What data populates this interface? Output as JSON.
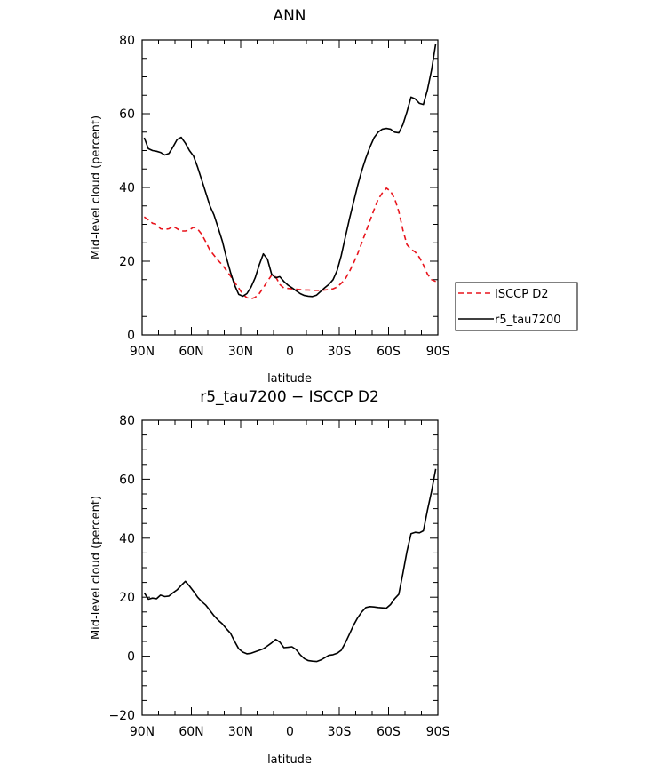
{
  "chart_data": [
    {
      "type": "line",
      "title": "ANN",
      "xlabel": "latitude",
      "ylabel": "Mid-level cloud (percent)",
      "xlim": [
        90,
        -90
      ],
      "ylim": [
        0,
        80
      ],
      "x_ticks": [
        90,
        60,
        30,
        0,
        -30,
        -60,
        -90
      ],
      "x_tick_labels": [
        "90N",
        "60N",
        "30N",
        "0",
        "30S",
        "60S",
        "90S"
      ],
      "y_ticks": [
        0,
        20,
        40,
        60,
        80
      ],
      "y_tick_labels": [
        "0",
        "20",
        "40",
        "60",
        "80"
      ],
      "legend_position": "right",
      "series": [
        {
          "name": "ISCCP D2",
          "color": "#e8141c",
          "dash": "dashed",
          "x": [
            88.7,
            86.2,
            83.7,
            81.2,
            78.8,
            76.2,
            73.7,
            71.2,
            68.7,
            66.2,
            63.7,
            61.2,
            58.7,
            56.2,
            53.7,
            51.2,
            48.7,
            46.2,
            43.7,
            41.2,
            38.7,
            36.2,
            33.7,
            31.2,
            28.7,
            26.2,
            23.7,
            21.2,
            18.7,
            16.2,
            13.7,
            11.2,
            8.7,
            6.2,
            3.7,
            1.2,
            -1.2,
            -3.7,
            -6.2,
            -8.7,
            -11.2,
            -13.7,
            -16.2,
            -18.7,
            -21.2,
            -23.7,
            -26.2,
            -28.7,
            -31.2,
            -33.7,
            -36.2,
            -38.7,
            -41.2,
            -43.7,
            -46.2,
            -48.7,
            -51.2,
            -53.7,
            -56.2,
            -58.7,
            -61.2,
            -63.7,
            -66.2,
            -68.7,
            -71.2,
            -73.7,
            -76.2,
            -78.8,
            -81.2,
            -83.7,
            -86.2,
            -88.7
          ],
          "values": [
            32.0,
            31.2,
            30.3,
            30.0,
            28.8,
            28.6,
            28.8,
            29.5,
            28.8,
            28.2,
            28.2,
            28.5,
            29.2,
            28.7,
            27.3,
            25.2,
            23.0,
            21.6,
            20.2,
            19.0,
            17.5,
            16.0,
            14.3,
            12.7,
            11.0,
            10.1,
            9.8,
            10.2,
            11.2,
            12.8,
            14.6,
            16.2,
            15.8,
            13.7,
            12.7,
            12.6,
            12.5,
            12.4,
            12.3,
            12.2,
            12.2,
            12.1,
            12.1,
            12.1,
            12.2,
            12.3,
            12.5,
            13.0,
            14.0,
            15.2,
            17.2,
            19.5,
            22.0,
            25.0,
            28.0,
            31.0,
            34.0,
            36.8,
            38.5,
            39.8,
            39.0,
            37.0,
            33.5,
            28.5,
            24.5,
            23.2,
            22.5,
            21.0,
            19.0,
            16.5,
            15.0,
            14.5
          ]
        },
        {
          "name": "r5_tau7200",
          "color": "#000000",
          "dash": "solid",
          "x": [
            88.7,
            86.2,
            83.7,
            81.2,
            78.8,
            76.2,
            73.7,
            71.2,
            68.7,
            66.2,
            63.7,
            61.2,
            58.7,
            56.2,
            53.7,
            51.2,
            48.7,
            46.2,
            43.7,
            41.2,
            38.7,
            36.2,
            33.7,
            31.2,
            28.7,
            26.2,
            23.7,
            21.2,
            18.7,
            16.2,
            13.7,
            11.2,
            8.7,
            6.2,
            3.7,
            1.2,
            -1.2,
            -3.7,
            -6.2,
            -8.7,
            -11.2,
            -13.7,
            -16.2,
            -18.7,
            -21.2,
            -23.7,
            -26.2,
            -28.7,
            -31.2,
            -33.7,
            -36.2,
            -38.7,
            -41.2,
            -43.7,
            -46.2,
            -48.7,
            -51.2,
            -53.7,
            -56.2,
            -58.7,
            -61.2,
            -63.7,
            -66.2,
            -68.7,
            -71.2,
            -73.7,
            -76.2,
            -78.8,
            -81.2,
            -83.7,
            -86.2,
            -88.7
          ],
          "values": [
            53.5,
            50.5,
            50.0,
            49.8,
            49.5,
            48.8,
            49.2,
            51.0,
            53.0,
            53.6,
            52.0,
            50.0,
            48.5,
            45.5,
            42.0,
            38.5,
            35.0,
            32.5,
            29.0,
            25.5,
            21.0,
            17.0,
            13.5,
            11.0,
            10.5,
            11.2,
            13.0,
            15.5,
            19.0,
            22.0,
            20.5,
            16.5,
            15.5,
            15.8,
            14.5,
            13.5,
            12.8,
            12.0,
            11.2,
            10.7,
            10.5,
            10.4,
            10.8,
            11.8,
            12.8,
            13.7,
            15.0,
            17.5,
            21.5,
            26.5,
            31.5,
            36.0,
            40.5,
            44.5,
            48.0,
            51.0,
            53.5,
            55.0,
            55.8,
            56.0,
            55.8,
            55.0,
            54.8,
            57.0,
            60.5,
            64.5,
            64.0,
            62.8,
            62.5,
            66.5,
            72.0,
            79.0
          ]
        }
      ]
    },
    {
      "type": "line",
      "title": "r5_tau7200 − ISCCP D2",
      "xlabel": "latitude",
      "ylabel": "Mid-level cloud (percent)",
      "xlim": [
        90,
        -90
      ],
      "ylim": [
        -20,
        80
      ],
      "x_ticks": [
        90,
        60,
        30,
        0,
        -30,
        -60,
        -90
      ],
      "x_tick_labels": [
        "90N",
        "60N",
        "30N",
        "0",
        "30S",
        "60S",
        "90S"
      ],
      "y_ticks": [
        -20,
        0,
        20,
        40,
        60,
        80
      ],
      "y_tick_labels": [
        "−20",
        "0",
        "20",
        "40",
        "60",
        "80"
      ],
      "series": [
        {
          "color": "#000000",
          "dash": "solid",
          "x": [
            88.7,
            86.2,
            83.7,
            81.2,
            78.8,
            76.2,
            73.7,
            71.2,
            68.7,
            66.2,
            63.7,
            61.2,
            58.7,
            56.2,
            53.7,
            51.2,
            48.7,
            46.2,
            43.7,
            41.2,
            38.7,
            36.2,
            33.7,
            31.2,
            28.7,
            26.2,
            23.7,
            21.2,
            18.7,
            16.2,
            13.7,
            11.2,
            8.7,
            6.2,
            3.7,
            1.2,
            -1.2,
            -3.7,
            -6.2,
            -8.7,
            -11.2,
            -13.7,
            -16.2,
            -18.7,
            -21.2,
            -23.7,
            -26.2,
            -28.7,
            -31.2,
            -33.7,
            -36.2,
            -38.7,
            -41.2,
            -43.7,
            -46.2,
            -48.7,
            -51.2,
            -53.7,
            -56.2,
            -58.7,
            -61.2,
            -63.7,
            -66.2,
            -68.7,
            -71.2,
            -73.7,
            -76.2,
            -78.8,
            -81.2,
            -83.7,
            -86.2,
            -88.7
          ],
          "values": [
            21.5,
            19.3,
            19.7,
            19.5,
            20.7,
            20.2,
            20.4,
            21.5,
            22.5,
            24.0,
            25.4,
            23.8,
            22.0,
            20.0,
            18.5,
            17.3,
            15.5,
            13.7,
            12.2,
            11.0,
            9.3,
            7.8,
            5.0,
            2.5,
            1.4,
            0.8,
            1.0,
            1.5,
            2.0,
            2.5,
            3.5,
            4.5,
            5.7,
            4.8,
            2.9,
            3.0,
            3.2,
            2.3,
            0.5,
            -0.8,
            -1.5,
            -1.7,
            -1.8,
            -1.3,
            -0.5,
            0.3,
            0.5,
            1.0,
            2.0,
            4.5,
            7.5,
            10.5,
            13.0,
            15.0,
            16.5,
            16.8,
            16.7,
            16.5,
            16.4,
            16.3,
            17.5,
            19.5,
            21.0,
            28.0,
            35.5,
            41.5,
            42.0,
            41.8,
            42.5,
            49.5,
            56.0,
            63.5
          ]
        }
      ]
    }
  ]
}
